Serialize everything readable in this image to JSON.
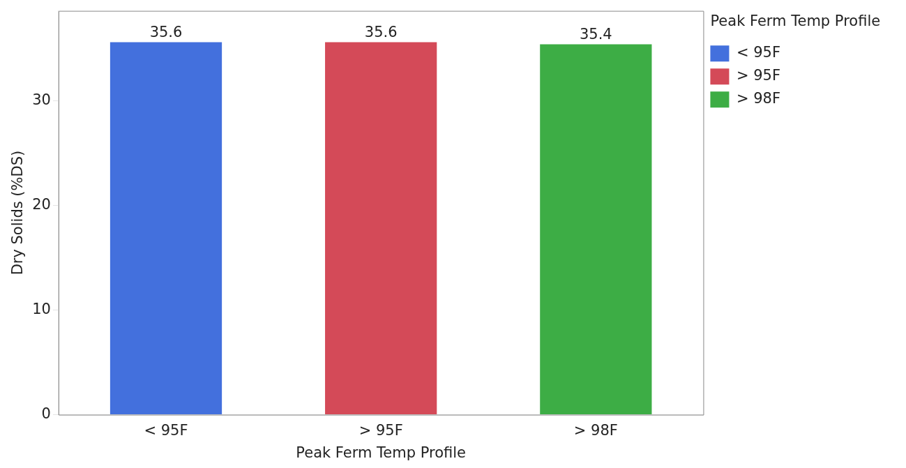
{
  "chart_data": {
    "type": "bar",
    "xlabel": "Peak Ferm Temp Profile",
    "ylabel": "Dry Solids (%DS)",
    "legend_title": "Peak Ferm Temp Profile",
    "categories": [
      "< 95F",
      "> 95F",
      "> 98F"
    ],
    "series": [
      {
        "name": "< 95F",
        "color": "#4370dd",
        "values": [
          35.6,
          null,
          null
        ]
      },
      {
        "name": "> 95F",
        "color": "#d44a58",
        "values": [
          null,
          35.6,
          null
        ]
      },
      {
        "name": "> 98F",
        "color": "#3dad45",
        "values": [
          null,
          null,
          35.4
        ]
      }
    ],
    "ylim": [
      0,
      38.6
    ],
    "yticks": [
      0,
      10,
      20,
      30
    ],
    "grid": false,
    "legend": "right",
    "data_labels": true
  }
}
